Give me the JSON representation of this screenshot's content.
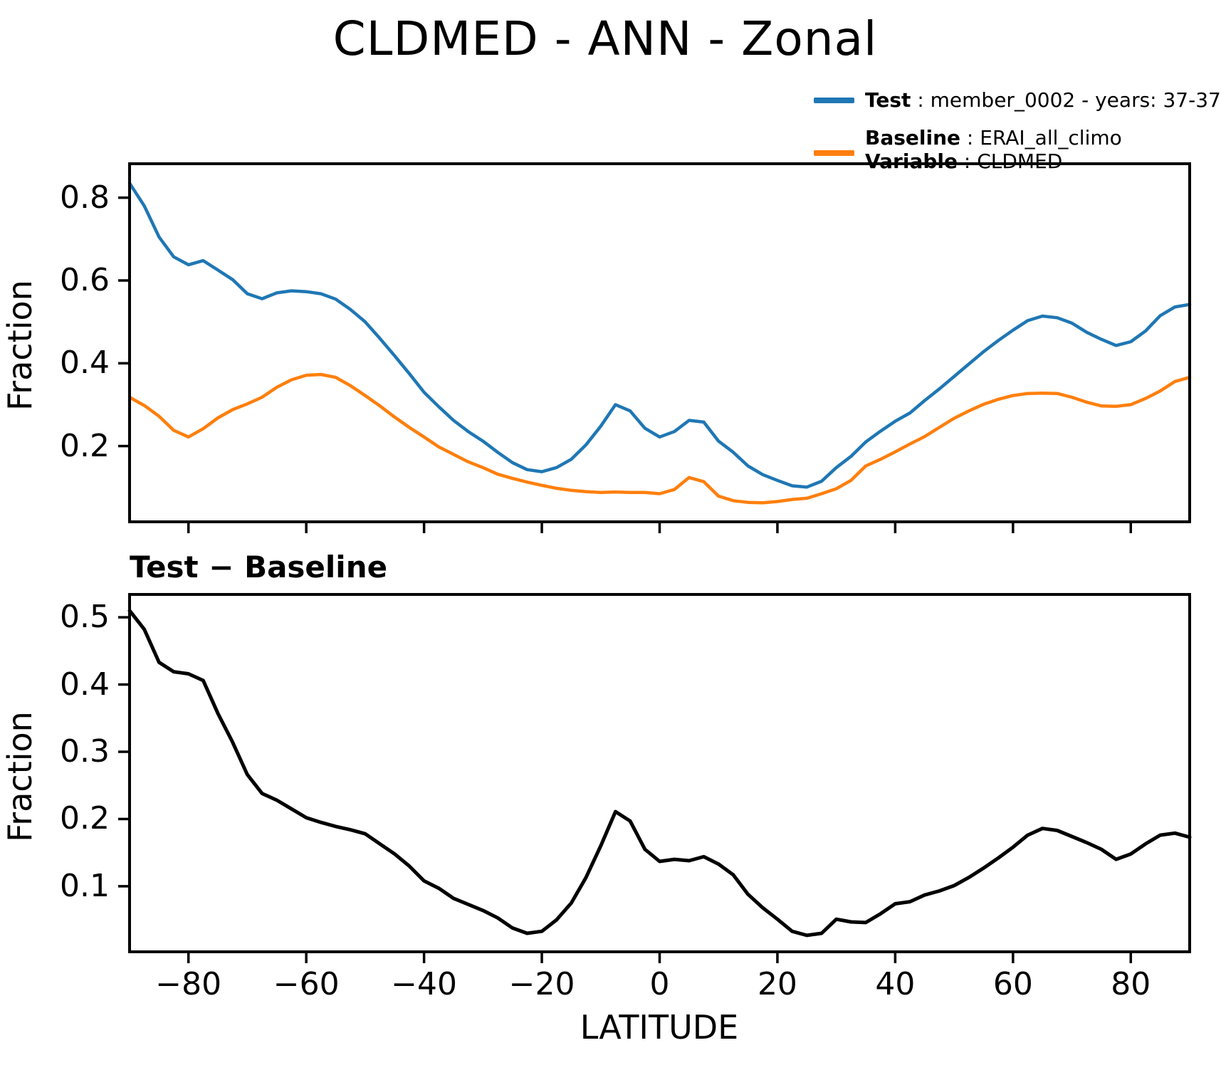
{
  "figure": {
    "title": "CLDMED - ANN - Zonal",
    "subtitle": "Test − Baseline",
    "xlabel": "LATITUDE",
    "ylabel": "Fraction",
    "background": "#ffffff"
  },
  "legend": {
    "items": [
      {
        "swatch_color": "#1f77b4",
        "lines": [
          {
            "b": "Test",
            "r": " : member_0002 - years: 37-37"
          }
        ]
      },
      {
        "swatch_color": "#ff7f0e",
        "lines": [
          {
            "b": "Baseline",
            "r": " : ERAI_all_climo"
          },
          {
            "b": "Variable",
            "r": " : CLDMED"
          }
        ]
      }
    ]
  },
  "chart_data": [
    {
      "type": "line",
      "title": "",
      "xlabel": "",
      "ylabel": "Fraction",
      "xlim": [
        -90,
        90
      ],
      "ylim": [
        0.017,
        0.882
      ],
      "xticks": [
        -80,
        -60,
        -40,
        -20,
        0,
        20,
        40,
        60,
        80
      ],
      "yticks": [
        0.2,
        0.4,
        0.6,
        0.8
      ],
      "x_tick_labels_visible": false,
      "grid": false,
      "x": [
        -90,
        -87.5,
        -85,
        -82.5,
        -80,
        -77.5,
        -75,
        -72.5,
        -70,
        -67.5,
        -65,
        -62.5,
        -60,
        -57.5,
        -55,
        -52.5,
        -50,
        -47.5,
        -45,
        -42.5,
        -40,
        -37.5,
        -35,
        -32.5,
        -30,
        -27.5,
        -25,
        -22.5,
        -20,
        -17.5,
        -15,
        -12.5,
        -10,
        -7.5,
        -5,
        -2.5,
        0,
        2.5,
        5,
        7.5,
        10,
        12.5,
        15,
        17.5,
        20,
        22.5,
        25,
        27.5,
        30,
        32.5,
        35,
        37.5,
        40,
        42.5,
        45,
        47.5,
        50,
        52.5,
        55,
        57.5,
        60,
        62.5,
        65,
        67.5,
        70,
        72.5,
        75,
        77.5,
        80,
        82.5,
        85,
        87.5,
        90
      ],
      "series": [
        {
          "name": "Test : member_0002 - years: 37-37",
          "color": "#1f77b4",
          "values": [
            0.835,
            0.78,
            0.705,
            0.657,
            0.638,
            0.648,
            0.625,
            0.602,
            0.568,
            0.556,
            0.57,
            0.575,
            0.573,
            0.568,
            0.555,
            0.53,
            0.5,
            0.46,
            0.418,
            0.375,
            0.33,
            0.295,
            0.262,
            0.235,
            0.212,
            0.185,
            0.16,
            0.143,
            0.138,
            0.148,
            0.168,
            0.203,
            0.248,
            0.3,
            0.285,
            0.243,
            0.222,
            0.235,
            0.262,
            0.258,
            0.212,
            0.185,
            0.152,
            0.131,
            0.117,
            0.104,
            0.101,
            0.115,
            0.148,
            0.175,
            0.21,
            0.236,
            0.26,
            0.28,
            0.31,
            0.338,
            0.368,
            0.398,
            0.428,
            0.455,
            0.48,
            0.503,
            0.514,
            0.51,
            0.497,
            0.475,
            0.458,
            0.443,
            0.452,
            0.478,
            0.515,
            0.536,
            0.542
          ]
        },
        {
          "name": "Baseline : ERAI_all_climo (Variable : CLDMED)",
          "color": "#ff7f0e",
          "values": [
            0.318,
            0.298,
            0.272,
            0.238,
            0.222,
            0.242,
            0.268,
            0.288,
            0.302,
            0.318,
            0.342,
            0.36,
            0.371,
            0.373,
            0.366,
            0.346,
            0.322,
            0.297,
            0.27,
            0.245,
            0.222,
            0.198,
            0.18,
            0.162,
            0.148,
            0.132,
            0.122,
            0.113,
            0.105,
            0.098,
            0.093,
            0.09,
            0.088,
            0.089,
            0.088,
            0.088,
            0.085,
            0.095,
            0.124,
            0.114,
            0.079,
            0.068,
            0.064,
            0.063,
            0.066,
            0.071,
            0.074,
            0.085,
            0.097,
            0.117,
            0.152,
            0.168,
            0.186,
            0.205,
            0.223,
            0.245,
            0.267,
            0.285,
            0.301,
            0.313,
            0.322,
            0.327,
            0.328,
            0.327,
            0.318,
            0.306,
            0.297,
            0.296,
            0.3,
            0.315,
            0.333,
            0.356,
            0.366
          ]
        }
      ]
    },
    {
      "type": "line",
      "title": "Test − Baseline",
      "xlabel": "LATITUDE",
      "ylabel": "Fraction",
      "xlim": [
        -90,
        90
      ],
      "ylim": [
        0.0025,
        0.534
      ],
      "xticks": [
        -80,
        -60,
        -40,
        -20,
        0,
        20,
        40,
        60,
        80
      ],
      "yticks": [
        0.1,
        0.2,
        0.3,
        0.4,
        0.5
      ],
      "x_tick_labels_visible": true,
      "grid": false,
      "x": [
        -90,
        -87.5,
        -85,
        -82.5,
        -80,
        -77.5,
        -75,
        -72.5,
        -70,
        -67.5,
        -65,
        -62.5,
        -60,
        -57.5,
        -55,
        -52.5,
        -50,
        -47.5,
        -45,
        -42.5,
        -40,
        -37.5,
        -35,
        -32.5,
        -30,
        -27.5,
        -25,
        -22.5,
        -20,
        -17.5,
        -15,
        -12.5,
        -10,
        -7.5,
        -5,
        -2.5,
        0,
        2.5,
        5,
        7.5,
        10,
        12.5,
        15,
        17.5,
        20,
        22.5,
        25,
        27.5,
        30,
        32.5,
        35,
        37.5,
        40,
        42.5,
        45,
        47.5,
        50,
        52.5,
        55,
        57.5,
        60,
        62.5,
        65,
        67.5,
        70,
        72.5,
        75,
        77.5,
        80,
        82.5,
        85,
        87.5,
        90
      ],
      "series": [
        {
          "name": "Test minus Baseline",
          "color": "#000000",
          "values": [
            0.51,
            0.482,
            0.433,
            0.419,
            0.416,
            0.406,
            0.357,
            0.314,
            0.266,
            0.238,
            0.228,
            0.215,
            0.202,
            0.195,
            0.189,
            0.184,
            0.178,
            0.163,
            0.148,
            0.13,
            0.108,
            0.097,
            0.082,
            0.073,
            0.064,
            0.053,
            0.038,
            0.03,
            0.033,
            0.05,
            0.075,
            0.113,
            0.16,
            0.211,
            0.197,
            0.155,
            0.137,
            0.14,
            0.138,
            0.144,
            0.133,
            0.117,
            0.088,
            0.068,
            0.051,
            0.033,
            0.027,
            0.03,
            0.051,
            0.047,
            0.046,
            0.059,
            0.074,
            0.077,
            0.087,
            0.093,
            0.101,
            0.113,
            0.127,
            0.142,
            0.158,
            0.176,
            0.186,
            0.183,
            0.174,
            0.165,
            0.155,
            0.14,
            0.148,
            0.163,
            0.176,
            0.179,
            0.173
          ]
        }
      ]
    }
  ]
}
